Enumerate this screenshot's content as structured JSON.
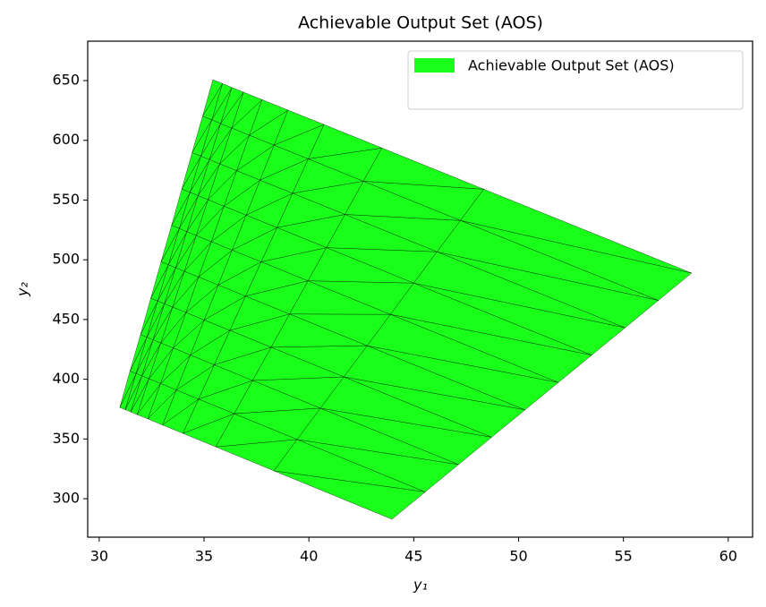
{
  "chart_data": {
    "type": "mesh",
    "title": "Achievable Output Set (AOS)",
    "xlabel": "y₁",
    "ylabel": "y₂",
    "series": [
      {
        "name": "Achievable Output Set (AOS)",
        "color": "#1aff1a",
        "x": [
          [
            30.98,
            31.47,
            31.97,
            32.46,
            32.95,
            33.45,
            33.94,
            34.43,
            34.93,
            35.42
          ],
          [
            31.24,
            31.76,
            32.27,
            32.79,
            33.3,
            33.82,
            34.33,
            34.85,
            35.37,
            35.88
          ],
          [
            31.5,
            32.04,
            32.57,
            33.11,
            33.65,
            34.18,
            34.72,
            35.26,
            35.79,
            36.33
          ],
          [
            31.81,
            32.37,
            32.94,
            33.5,
            34.06,
            34.63,
            35.19,
            35.75,
            36.32,
            36.88
          ],
          [
            32.32,
            32.93,
            33.53,
            34.14,
            34.74,
            35.35,
            35.95,
            36.56,
            37.16,
            37.77
          ],
          [
            33.02,
            33.68,
            34.35,
            35.01,
            35.68,
            36.34,
            37.01,
            37.67,
            38.34,
            39.0
          ],
          [
            33.99,
            34.74,
            35.49,
            36.23,
            36.98,
            37.73,
            38.48,
            39.22,
            39.97,
            40.72
          ],
          [
            35.56,
            36.44,
            37.32,
            38.2,
            39.08,
            39.96,
            40.84,
            41.72,
            42.6,
            43.48
          ],
          [
            38.33,
            39.44,
            40.55,
            41.67,
            42.78,
            43.89,
            45.0,
            46.11,
            47.23,
            48.34
          ],
          [
            43.96,
            45.55,
            47.14,
            48.72,
            50.31,
            51.9,
            53.49,
            55.08,
            56.67,
            58.25
          ]
        ],
        "values": [
          [
            376.4,
            406.9,
            437.4,
            467.8,
            498.3,
            528.8,
            559.3,
            589.7,
            620.2,
            650.7
          ],
          [
            374.5,
            404.8,
            435.2,
            465.5,
            495.8,
            526.2,
            556.5,
            586.8,
            617.2,
            647.5
          ],
          [
            372.7,
            402.9,
            433.0,
            463.2,
            493.4,
            523.5,
            553.7,
            583.9,
            614.0,
            644.2
          ],
          [
            370.4,
            400.4,
            430.4,
            460.4,
            490.4,
            520.3,
            550.3,
            580.3,
            610.3,
            640.3
          ],
          [
            366.8,
            396.5,
            426.2,
            455.9,
            485.6,
            515.2,
            544.9,
            574.6,
            604.3,
            634.0
          ],
          [
            361.7,
            391.0,
            420.3,
            449.6,
            478.9,
            508.1,
            537.4,
            566.7,
            596.0,
            625.3
          ],
          [
            354.7,
            383.4,
            412.1,
            440.9,
            469.6,
            498.3,
            527.0,
            555.7,
            584.5,
            613.2
          ],
          [
            343.4,
            371.2,
            399.0,
            426.8,
            454.6,
            482.4,
            510.2,
            538.0,
            565.8,
            593.6
          ],
          [
            323.4,
            349.6,
            375.8,
            402.0,
            428.1,
            454.3,
            480.5,
            506.7,
            532.9,
            559.1
          ],
          [
            282.8,
            305.7,
            328.6,
            351.5,
            374.4,
            397.3,
            420.2,
            443.1,
            466.0,
            488.9
          ]
        ]
      }
    ],
    "xlim": [
      29.45,
      61.16
    ],
    "ylim": [
      267.8,
      683.0
    ],
    "xticks": [
      30,
      35,
      40,
      45,
      50,
      55,
      60
    ],
    "yticks": [
      300,
      350,
      400,
      450,
      500,
      550,
      600,
      650
    ],
    "legend": "upper right"
  }
}
